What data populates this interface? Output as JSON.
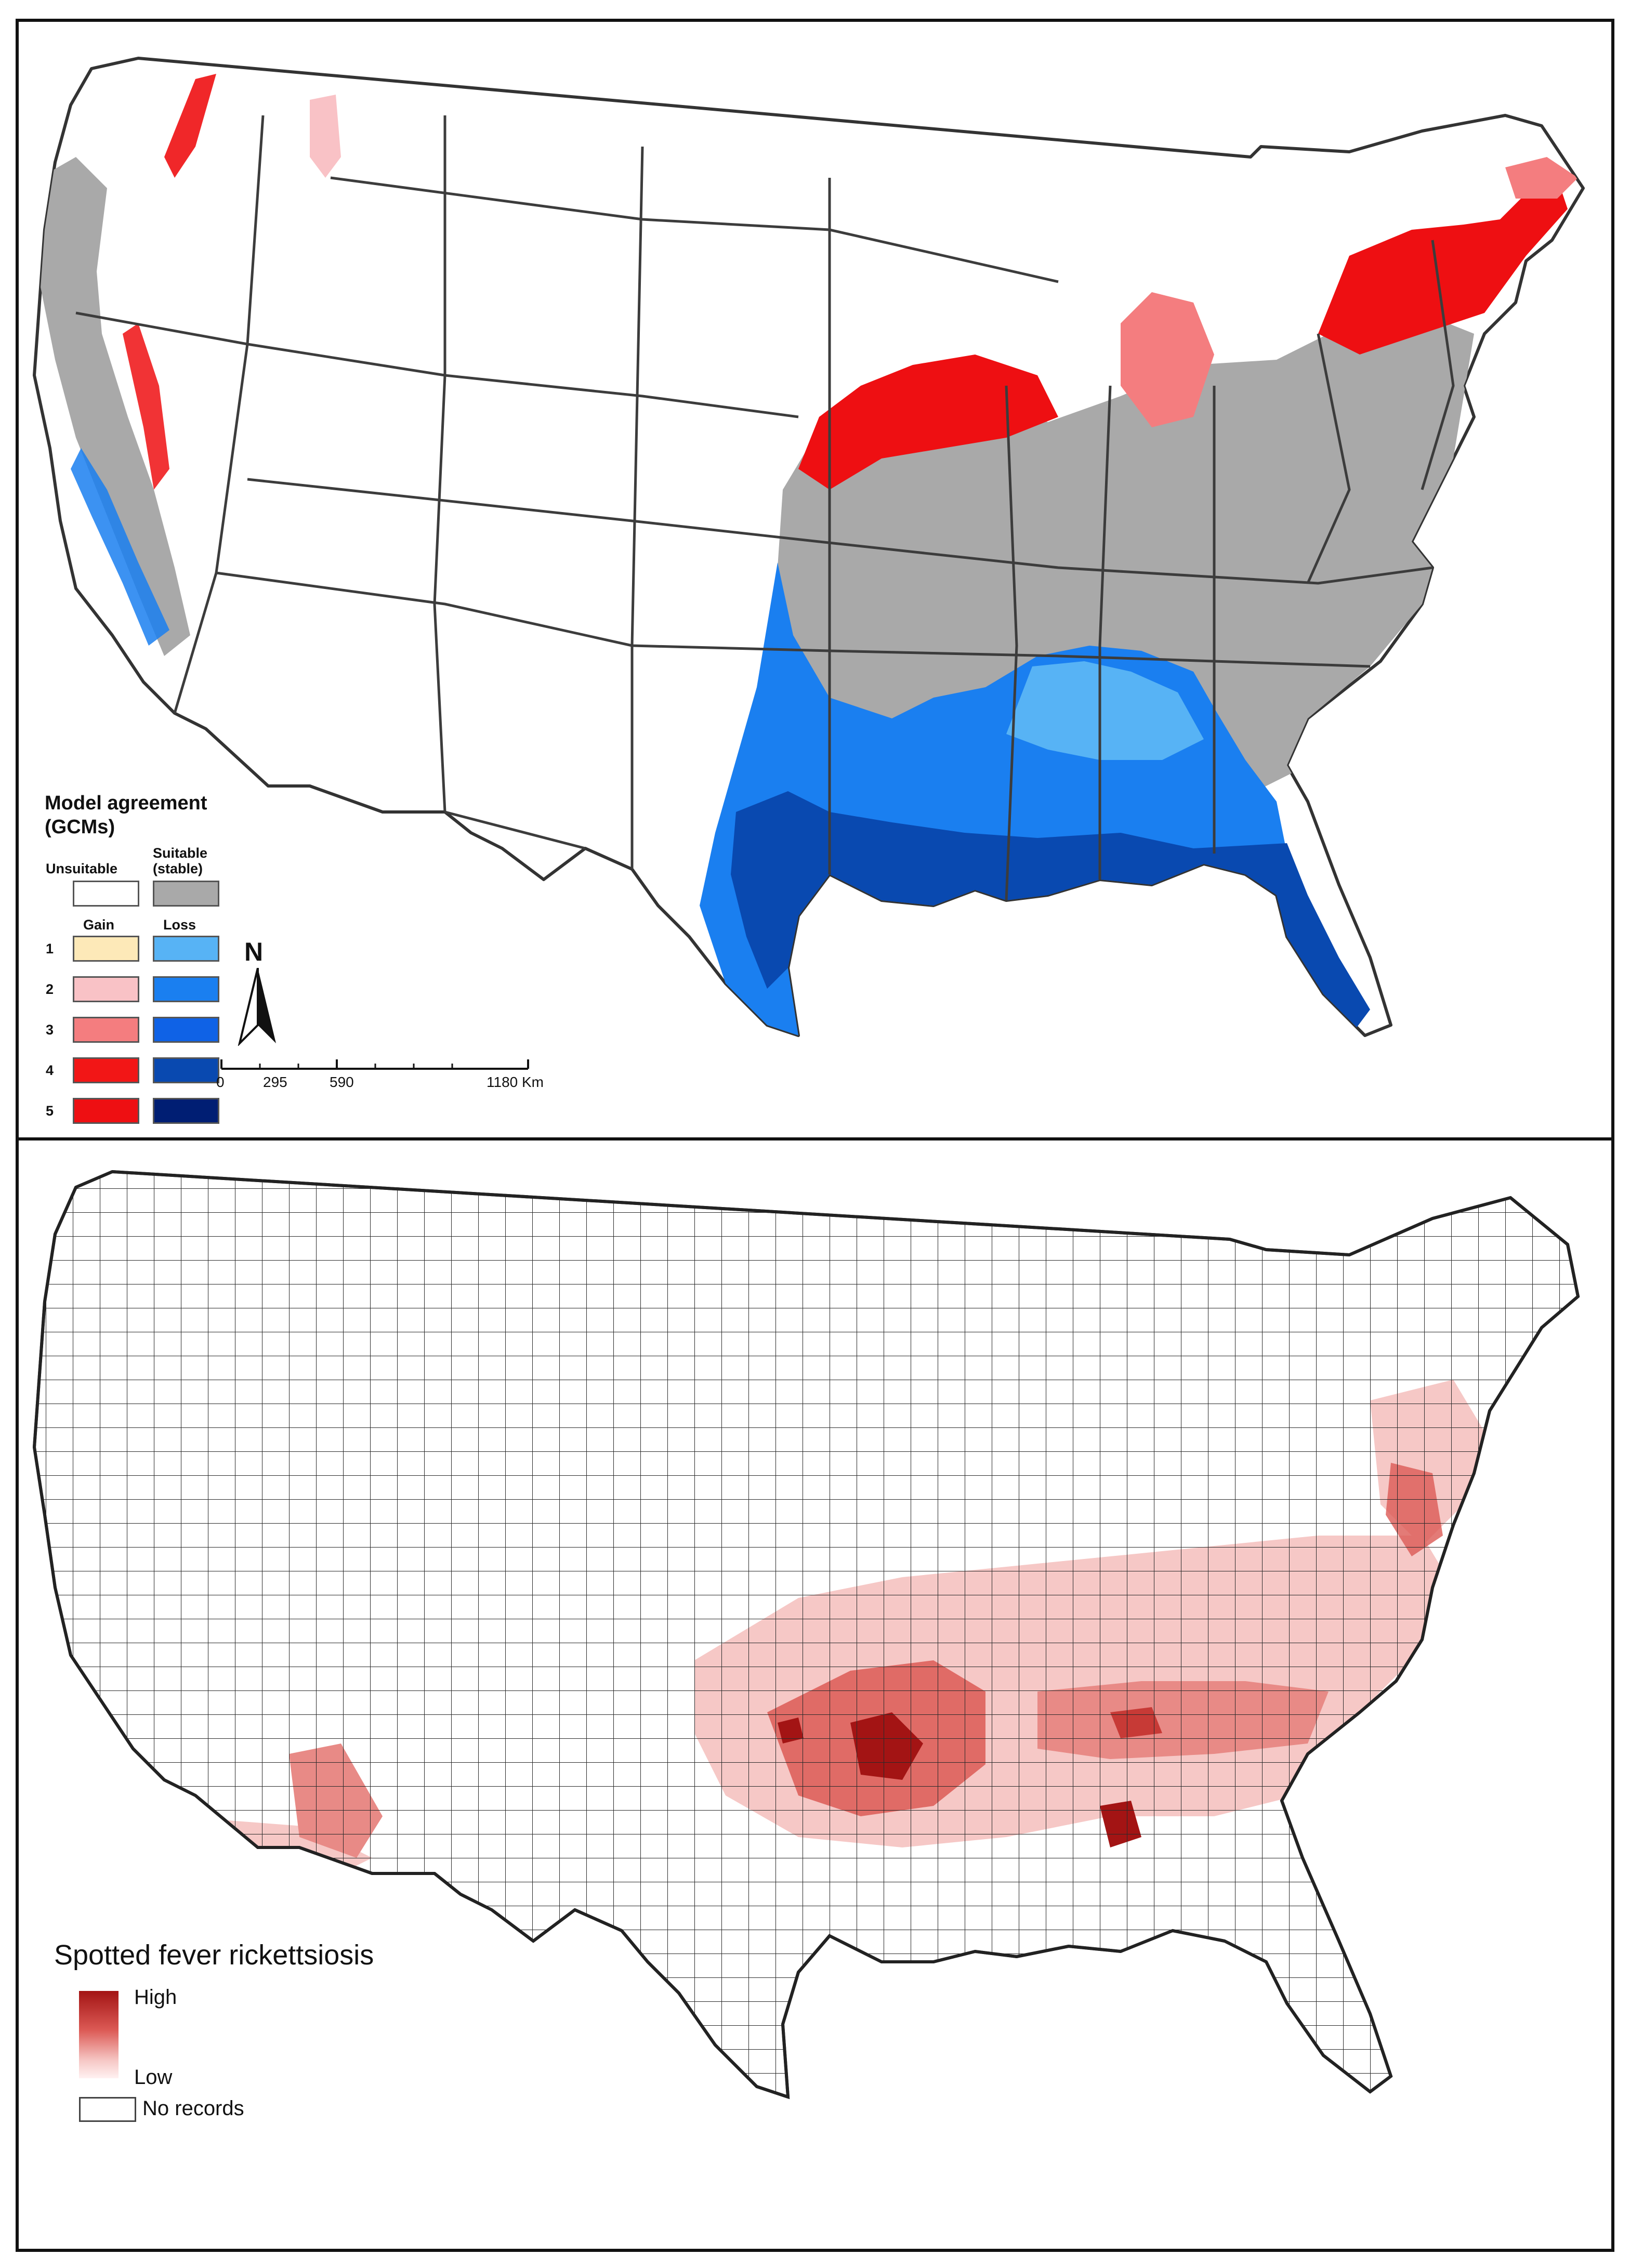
{
  "top_panel": {
    "legend": {
      "title_line1": "Model agreement",
      "title_line2": "(GCMs)",
      "unsuitable_label": "Unsuitable",
      "suitable_label_line1": "Suitable",
      "suitable_label_line2": "(stable)",
      "gain_label": "Gain",
      "loss_label": "Loss",
      "rows": [
        {
          "level": "1",
          "gain_color": "#fde9b8",
          "loss_color": "#57b3f5"
        },
        {
          "level": "2",
          "gain_color": "#f9c2c6",
          "loss_color": "#1a7ff0"
        },
        {
          "level": "3",
          "gain_color": "#f47d7f",
          "loss_color": "#0f62e6"
        },
        {
          "level": "4",
          "gain_color": "#f21616",
          "loss_color": "#0949b0"
        },
        {
          "level": "5",
          "gain_color": "#ee0f12",
          "loss_color": "#001e73"
        }
      ],
      "unsuitable_color": "#ffffff",
      "suitable_color": "#a9a9a9"
    },
    "north_arrow": "N",
    "scale_bar": {
      "ticks": [
        "0",
        "295",
        "590",
        "1180 Km"
      ]
    }
  },
  "bottom_panel": {
    "legend": {
      "title": "Spotted fever rickettsiosis",
      "high_label": "High",
      "low_label": "Low",
      "no_records_label": "No records"
    },
    "colors": {
      "high": "#a31414",
      "mid": "#dc5a55",
      "low": "#f6c8c6",
      "none": "#ffffff"
    }
  }
}
